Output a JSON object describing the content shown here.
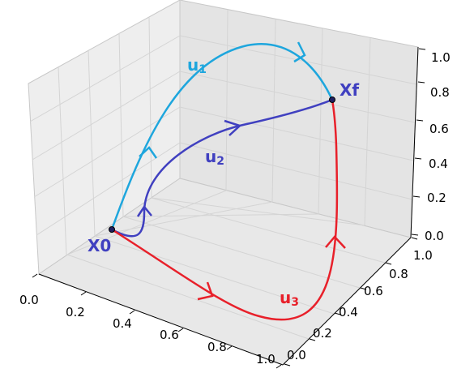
{
  "axes": {
    "x_ticks": [
      "0.0",
      "0.2",
      "0.4",
      "0.6",
      "0.8",
      "1.0"
    ],
    "y_ticks": [
      "0.0",
      "0.2",
      "0.4",
      "0.6",
      "0.8",
      "1.0"
    ],
    "z_ticks": [
      "0.0",
      "0.2",
      "0.4",
      "0.6",
      "0.8",
      "1.0"
    ]
  },
  "points": {
    "start": {
      "label": "X0",
      "color": "#4040c0"
    },
    "end": {
      "label": "Xf",
      "color": "#4040c0"
    }
  },
  "curves": [
    {
      "id": "u1",
      "label": "u",
      "subscript": "1",
      "color": "#1ea6dd"
    },
    {
      "id": "u2",
      "label": "u",
      "subscript": "2",
      "color": "#4040c0"
    },
    {
      "id": "u3",
      "label": "u",
      "subscript": "3",
      "color": "#e8202a"
    }
  ],
  "colors": {
    "pane_left": "#eeeeee",
    "pane_right": "#e4e4e4",
    "pane_floor": "#e8e8e8",
    "grid": "#d6d6d6"
  }
}
